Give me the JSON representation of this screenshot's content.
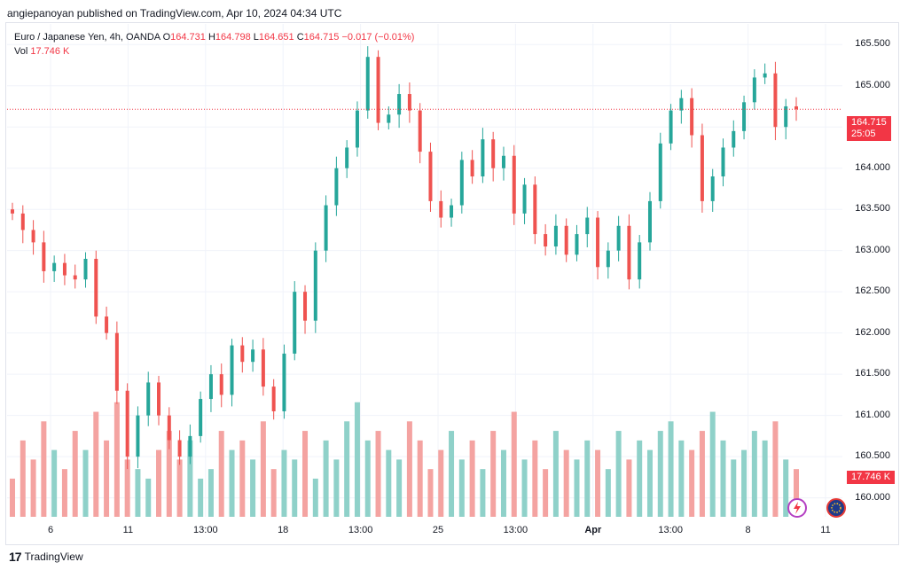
{
  "header": {
    "published_by": "angiepanoyan published on TradingView.com, Apr 10, 2024 04:34 UTC"
  },
  "legend": {
    "symbol": "Euro / Japanese Yen, 4h, OANDA",
    "open_label": "O",
    "open": "164.731",
    "high_label": "H",
    "high": "164.798",
    "low_label": "L",
    "low": "164.651",
    "close_label": "C",
    "close": "164.715",
    "change": "−0.017 (−0.01%)",
    "vol_label": "Vol",
    "vol_value": "17.746 K"
  },
  "price_badge": {
    "price": "164.715",
    "countdown": "25:05"
  },
  "volume_badge": "17.746 K",
  "footer": {
    "brand": "TradingView",
    "logo_mark": "17"
  },
  "colors": {
    "up": "#26a69a",
    "down": "#ef5350",
    "up_volume": "#8fd1c9",
    "down_volume": "#f4a3a1",
    "grid": "#f0f3fa",
    "badge": "#f23645"
  },
  "chart_data": {
    "type": "candlestick",
    "price_axis": {
      "ylim": [
        159.77,
        165.75
      ],
      "ticks": [
        "165.500",
        "165.000",
        "164.500",
        "164.000",
        "163.500",
        "163.000",
        "162.500",
        "162.000",
        "161.500",
        "161.000",
        "160.500",
        "160.000"
      ]
    },
    "x_ticks": [
      {
        "label": "6",
        "bold": false
      },
      {
        "label": "11",
        "bold": false
      },
      {
        "label": "13:00",
        "bold": false
      },
      {
        "label": "18",
        "bold": false
      },
      {
        "label": "13:00",
        "bold": false
      },
      {
        "label": "25",
        "bold": false
      },
      {
        "label": "13:00",
        "bold": false
      },
      {
        "label": "Apr",
        "bold": true
      },
      {
        "label": "13:00",
        "bold": false
      },
      {
        "label": "8",
        "bold": false
      },
      {
        "label": "11",
        "bold": false
      }
    ],
    "current_price": 164.715,
    "close_path": [
      163.45,
      163.25,
      163.1,
      162.75,
      162.85,
      162.7,
      162.65,
      162.9,
      162.2,
      162.0,
      161.3,
      160.5,
      161.0,
      161.4,
      161.0,
      160.7,
      160.5,
      160.75,
      161.2,
      161.5,
      161.25,
      161.85,
      161.65,
      161.8,
      161.35,
      161.05,
      161.75,
      162.5,
      162.15,
      163.0,
      163.55,
      164.0,
      164.25,
      164.7,
      165.35,
      164.55,
      164.65,
      164.9,
      164.7,
      164.2,
      163.6,
      163.4,
      163.55,
      164.1,
      163.9,
      164.35,
      164.0,
      164.15,
      163.45,
      163.8,
      163.2,
      163.05,
      163.3,
      162.95,
      163.2,
      163.4,
      162.8,
      163.0,
      163.3,
      162.65,
      163.1,
      163.6,
      164.3,
      164.7,
      164.85,
      164.4,
      163.6,
      163.9,
      164.25,
      164.45,
      164.8,
      165.1,
      165.15,
      164.5,
      164.75,
      164.715
    ],
    "volume_ylim": [
      0,
      13
    ],
    "volume_path": [
      4,
      8,
      6,
      10,
      7,
      5,
      9,
      7,
      11,
      8,
      12,
      6,
      5,
      4,
      7,
      9,
      6,
      8,
      4,
      5,
      9,
      7,
      8,
      6,
      10,
      5,
      7,
      6,
      9,
      4,
      8,
      6,
      10,
      12,
      8,
      9,
      7,
      6,
      10,
      8,
      5,
      7,
      9,
      6,
      8,
      5,
      9,
      7,
      11,
      6,
      8,
      5,
      9,
      7,
      6,
      8,
      7,
      5,
      9,
      6,
      8,
      7,
      9,
      10,
      8,
      7,
      9,
      11,
      8,
      6,
      7,
      9,
      8,
      10,
      6,
      5
    ]
  }
}
